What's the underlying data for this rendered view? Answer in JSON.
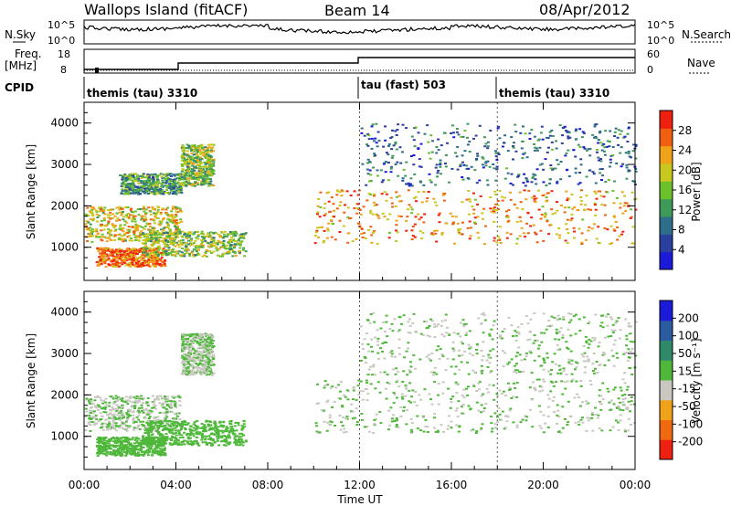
{
  "header": {
    "station": "Wallops Island (fitACF)",
    "beam": "Beam 14",
    "date": "08/Apr/2012"
  },
  "strip_labels": {
    "nsky": "N.Sky",
    "nsearch": "N.Search",
    "freq": "Freq.",
    "freq_unit": "[MHz]",
    "nave": "Nave",
    "cpid": "CPID",
    "nsky_ticks": [
      "10^5",
      "10^0"
    ],
    "nsearch_ticks": [
      "10^5",
      "10^0"
    ],
    "freq_ticks": [
      "18",
      "8"
    ],
    "nave_ticks": [
      "60",
      "0"
    ]
  },
  "cpid_segments": [
    {
      "label": "themis (tau) 3310",
      "start_hour": 0
    },
    {
      "label": "tau (fast) 503",
      "start_hour": 12
    },
    {
      "label": "themis (tau) 3310",
      "start_hour": 18
    }
  ],
  "axes": {
    "ylabel": "Slant Range [km]",
    "xlabel": "Time UT",
    "x_ticks": [
      "00:00",
      "04:00",
      "08:00",
      "12:00",
      "16:00",
      "20:00",
      "00:00"
    ],
    "y_ticks": [
      "1000",
      "2000",
      "3000",
      "4000"
    ]
  },
  "colorbars": {
    "power": {
      "label": "Power [dB]",
      "ticks": [
        "4",
        "8",
        "12",
        "16",
        "20",
        "24",
        "28"
      ],
      "colors": [
        "#1a1ad8",
        "#2a3f9e",
        "#2f6e8a",
        "#3f9a5a",
        "#6cc02c",
        "#c8c81e",
        "#f0a21a",
        "#f06010",
        "#f02010"
      ]
    },
    "velocity": {
      "label": "Velocity [m s⁻¹]",
      "ticks": [
        "200",
        "100",
        "50",
        "15",
        "-15",
        "-50",
        "-100",
        "-200"
      ],
      "colors": [
        "#1a1ad8",
        "#2a5aa0",
        "#2f8a6a",
        "#4fb83a",
        "#c8c8c0",
        "#f0a21a",
        "#f06a10",
        "#f02010"
      ]
    }
  },
  "chart_data": [
    {
      "type": "heatmap",
      "title": "Power",
      "xlabel": "Time UT",
      "ylabel": "Slant Range [km]",
      "xlim": [
        0,
        24
      ],
      "ylim": [
        200,
        4500
      ],
      "colorbar": "Power [dB]",
      "bands": [
        {
          "t0": 0.0,
          "t1": 4.2,
          "r0": 1150,
          "r1": 2000,
          "value": 20
        },
        {
          "t0": 0.5,
          "t1": 3.5,
          "r0": 550,
          "r1": 1000,
          "value": 26
        },
        {
          "t0": 2.5,
          "t1": 7.0,
          "r0": 800,
          "r1": 1400,
          "value": 16
        },
        {
          "t0": 1.5,
          "t1": 4.2,
          "r0": 2300,
          "r1": 2800,
          "value": 12
        },
        {
          "t0": 4.2,
          "t1": 5.6,
          "r0": 2500,
          "r1": 3500,
          "value": 16
        },
        {
          "t0": 10.0,
          "t1": 24.0,
          "r0": 1100,
          "r1": 2400,
          "value": 24
        },
        {
          "t0": 12.0,
          "t1": 24.0,
          "r0": 2500,
          "r1": 4000,
          "value": 8
        }
      ]
    },
    {
      "type": "heatmap",
      "title": "Velocity",
      "xlabel": "Time UT",
      "ylabel": "Slant Range [km]",
      "xlim": [
        0,
        24
      ],
      "ylim": [
        200,
        4500
      ],
      "colorbar": "Velocity [m s⁻¹]",
      "bands": [
        {
          "t0": 0.0,
          "t1": 4.2,
          "r0": 1150,
          "r1": 2000,
          "value": 0
        },
        {
          "t0": 0.5,
          "t1": 3.5,
          "r0": 550,
          "r1": 1000,
          "value": 40
        },
        {
          "t0": 2.5,
          "t1": 7.0,
          "r0": 800,
          "r1": 1400,
          "value": 40
        },
        {
          "t0": 4.2,
          "t1": 5.6,
          "r0": 2500,
          "r1": 3500,
          "value": 0
        },
        {
          "t0": 10.0,
          "t1": 24.0,
          "r0": 1100,
          "r1": 2400,
          "value": 0
        },
        {
          "t0": 12.0,
          "t1": 24.0,
          "r0": 2500,
          "r1": 4000,
          "value": 0
        }
      ]
    }
  ]
}
